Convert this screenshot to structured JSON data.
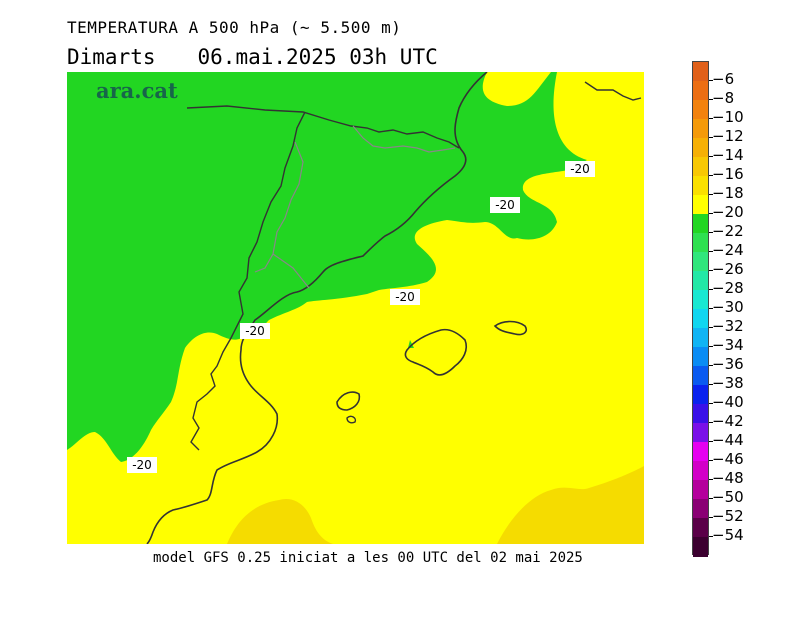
{
  "header": {
    "title": "TEMPERATURA A 500 hPa (~ 5.500 m)",
    "day": "Dimarts",
    "date": "06.mai.2025 03h UTC"
  },
  "logo": "ara.cat",
  "footer": "model GFS 0.25 iniciat a les 00 UTC del 02 mai 2025",
  "map": {
    "contour_labels": [
      "-20",
      "-20",
      "-20",
      "-20",
      "-20"
    ],
    "field_colors": {
      "green": "#22d622",
      "yellow": "#ffff00",
      "gold": "#f5dc00"
    }
  },
  "colorbar": {
    "levels": [
      {
        "label": "-6",
        "color": "#e0601a"
      },
      {
        "label": "-8",
        "color": "#ec6e14"
      },
      {
        "label": "-10",
        "color": "#f2820e"
      },
      {
        "label": "-12",
        "color": "#f49a0a"
      },
      {
        "label": "-14",
        "color": "#f6b006"
      },
      {
        "label": "-16",
        "color": "#f8c804"
      },
      {
        "label": "-18",
        "color": "#fae000"
      },
      {
        "label": "-20",
        "color": "#ffff00"
      },
      {
        "label": "-22",
        "color": "#22d622"
      },
      {
        "label": "-24",
        "color": "#2ee050"
      },
      {
        "label": "-26",
        "color": "#30e67c"
      },
      {
        "label": "-28",
        "color": "#22e8a6"
      },
      {
        "label": "-30",
        "color": "#18e8d2"
      },
      {
        "label": "-32",
        "color": "#10d6f0"
      },
      {
        "label": "-34",
        "color": "#10b4f4"
      },
      {
        "label": "-36",
        "color": "#0a8cf4"
      },
      {
        "label": "-38",
        "color": "#0a5af0"
      },
      {
        "label": "-40",
        "color": "#0a22ee"
      },
      {
        "label": "-42",
        "color": "#3a10e8"
      },
      {
        "label": "-44",
        "color": "#7a10e8"
      },
      {
        "label": "-46",
        "color": "#e600f0"
      },
      {
        "label": "-48",
        "color": "#d200c8"
      },
      {
        "label": "-50",
        "color": "#b4009c"
      },
      {
        "label": "-52",
        "color": "#8a0074"
      },
      {
        "label": "-54",
        "color": "#5a0048"
      },
      {
        "label": "",
        "color": "#3c0030"
      }
    ]
  }
}
